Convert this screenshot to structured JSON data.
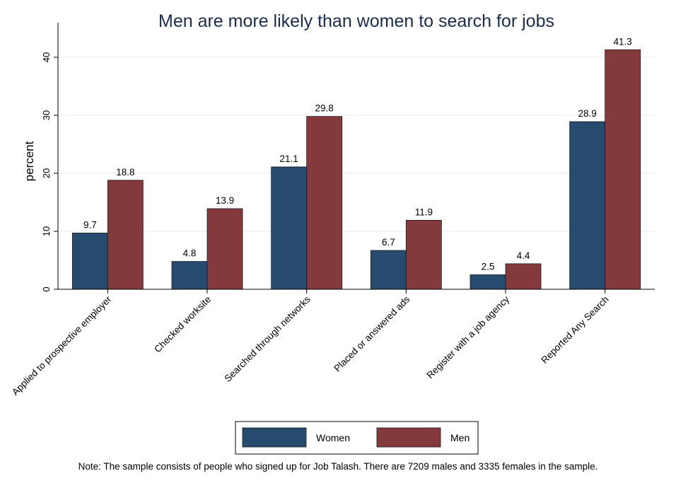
{
  "chart_data": {
    "type": "bar",
    "title": "Men are more likely than women to search for jobs",
    "ylabel": "percent",
    "xlabel": "",
    "ylim": [
      0,
      45
    ],
    "yticks": [
      0,
      10,
      20,
      30,
      40
    ],
    "grid": true,
    "categories": [
      "Applied to prospective employer",
      "Checked worksite",
      "Searched through networks",
      "Placed or answered ads",
      "Register with a job agency",
      "Reported Any Search"
    ],
    "series": [
      {
        "name": "Women",
        "color": "#274b6f",
        "values": [
          9.7,
          4.8,
          21.1,
          6.7,
          2.5,
          28.9
        ]
      },
      {
        "name": "Men",
        "color": "#843a3d",
        "values": [
          18.8,
          13.9,
          29.8,
          11.9,
          4.4,
          41.3
        ]
      }
    ],
    "legend_position": "bottom",
    "note": "Note: The sample consists of people who signed up for Job Talash. There are 7209 males and 3335 females in the sample."
  }
}
